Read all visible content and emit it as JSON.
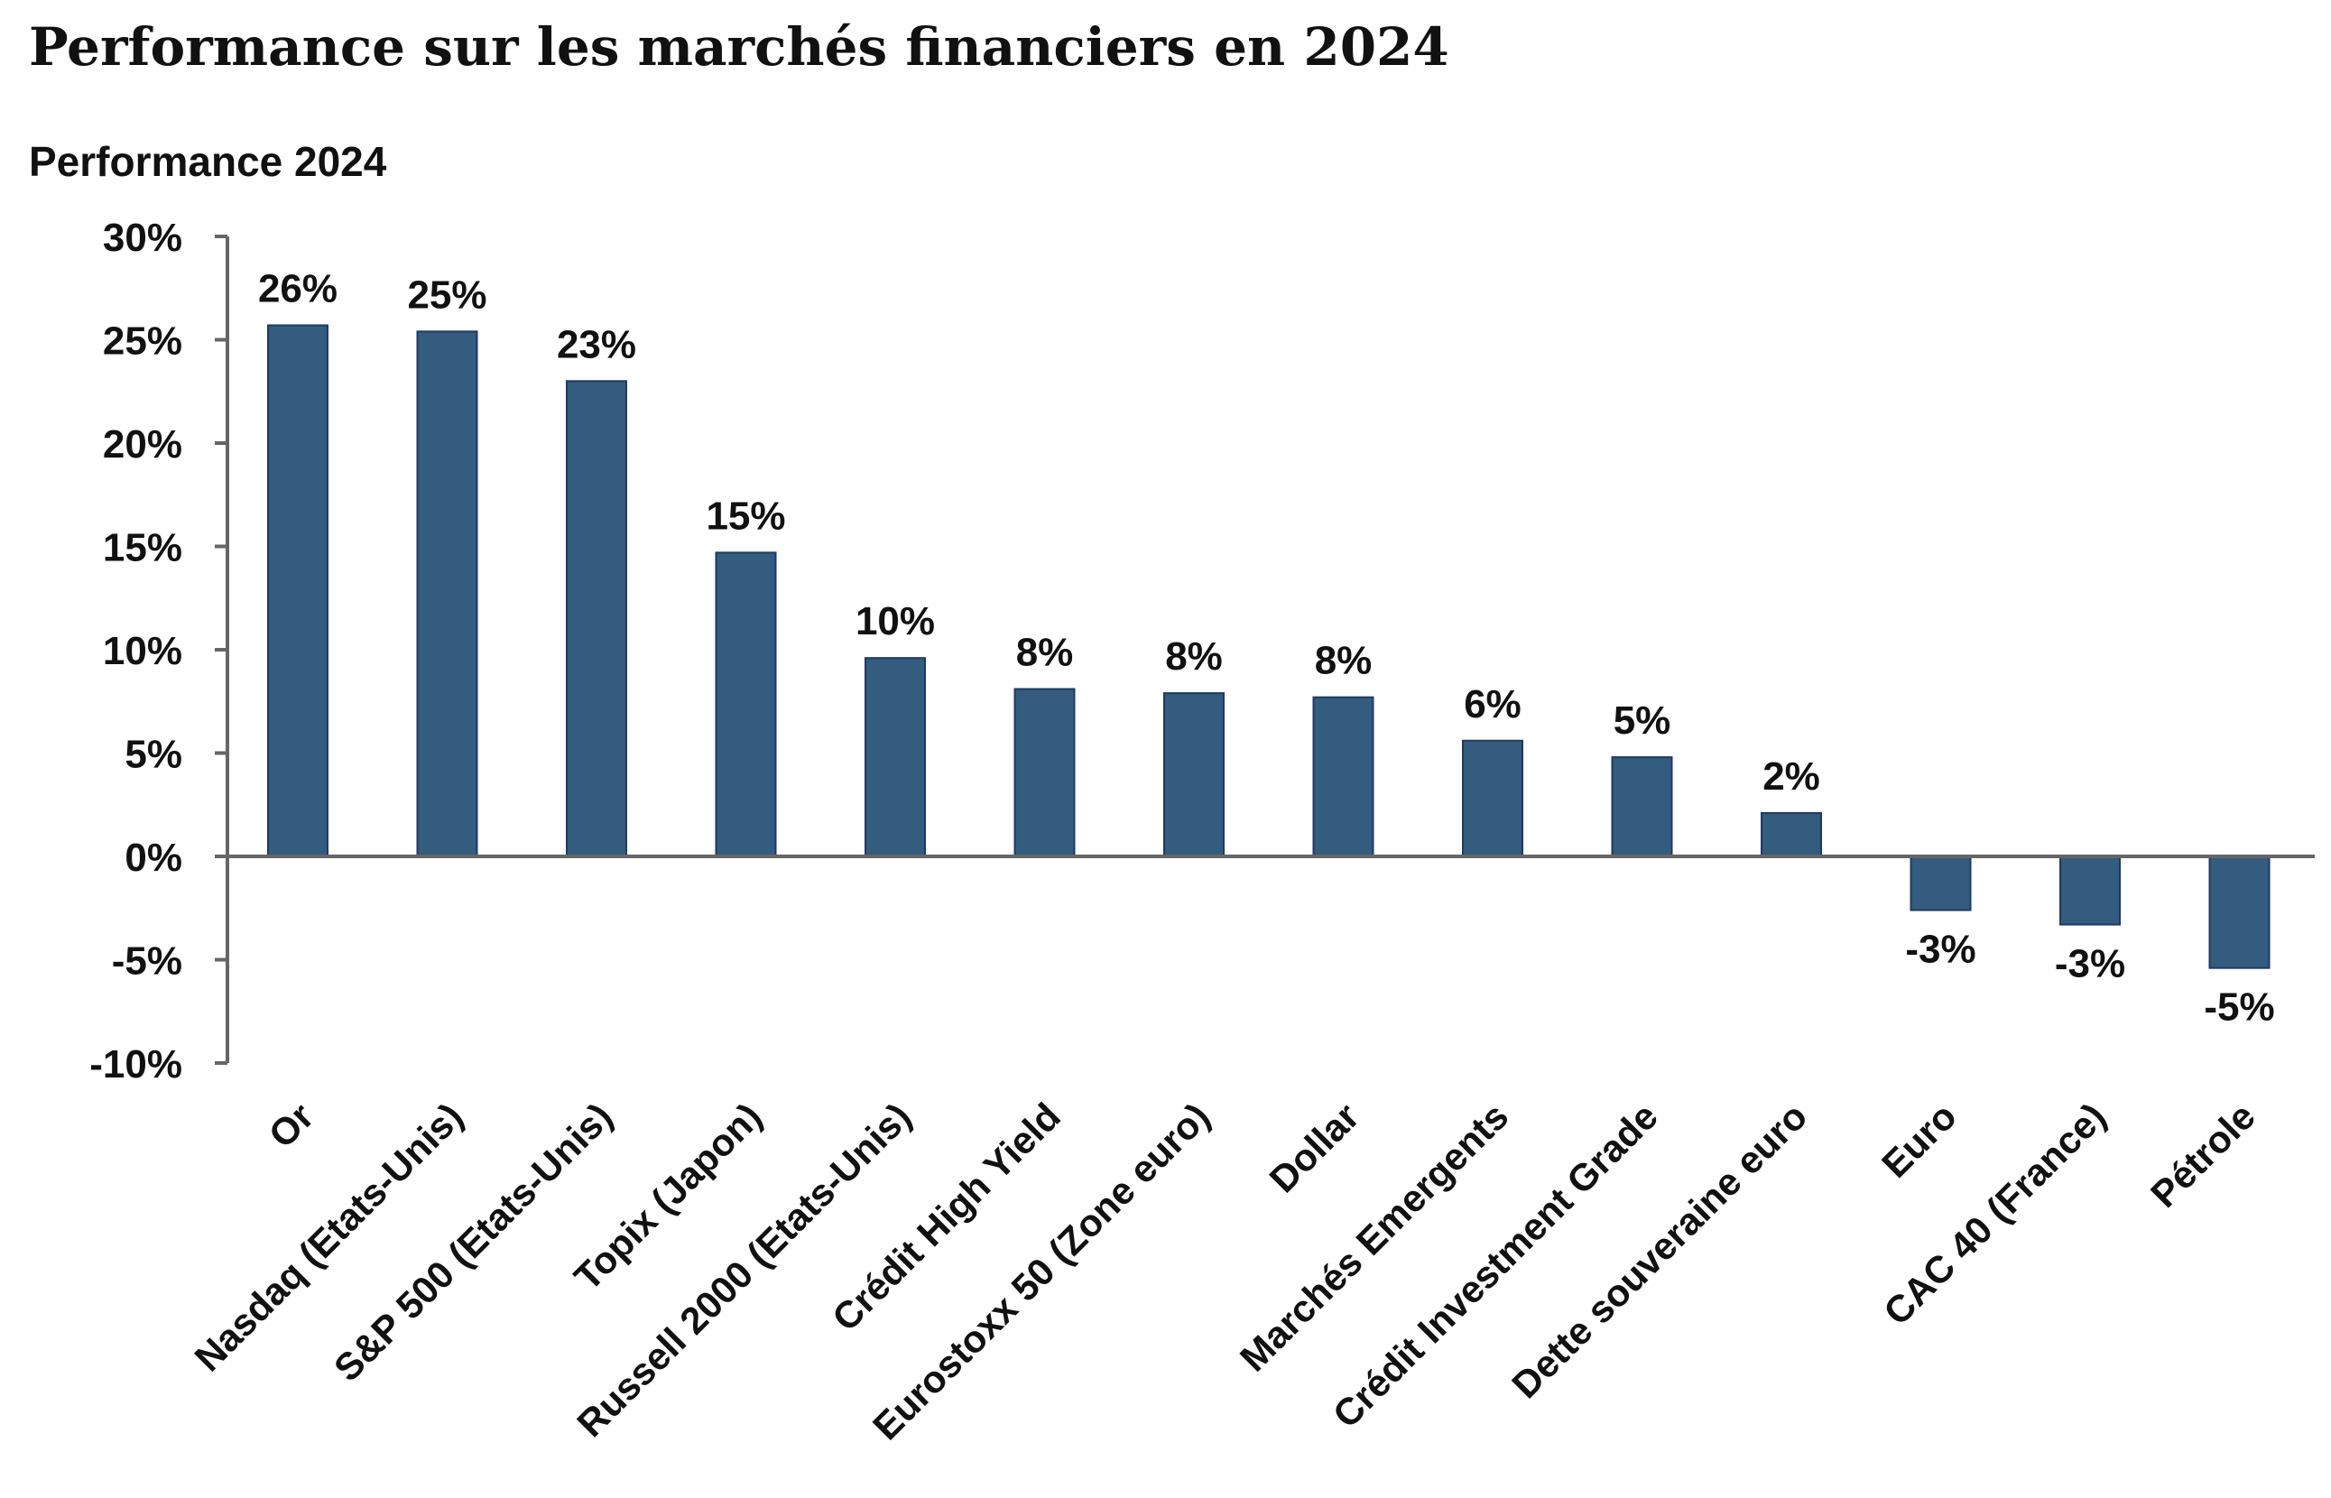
{
  "title": "Performance sur les marchés financiers en 2024",
  "subtitle": "Performance 2024",
  "chart_data": {
    "type": "bar",
    "ylabel": "",
    "xlabel": "",
    "ylim": [
      -10,
      30
    ],
    "yticks": [
      30,
      25,
      20,
      15,
      10,
      5,
      0,
      -5,
      -10
    ],
    "ytick_labels": [
      "30%",
      "25%",
      "20%",
      "15%",
      "10%",
      "5%",
      "0%",
      "-5%",
      "-10%"
    ],
    "grid": false,
    "legend": "none",
    "bar_color": "#335c7e",
    "categories": [
      "Or",
      "Nasdaq (Etats-Unis)",
      "S&P 500 (Etats-Unis)",
      "Topix (Japon)",
      "Russell 2000 (Etats-Unis)",
      "Crédit High Yield",
      "Eurostoxx 50 (Zone euro)",
      "Dollar",
      "Marchés Emergents",
      "Crédit Investment Grade",
      "Dette souveraine euro",
      "Euro",
      "CAC 40 (France)",
      "Pétrole"
    ],
    "values": [
      25.7,
      25.4,
      23.0,
      14.7,
      9.6,
      8.1,
      7.9,
      7.7,
      5.6,
      4.8,
      2.1,
      -2.6,
      -3.3,
      -5.4
    ],
    "data_labels": [
      "26%",
      "25%",
      "23%",
      "15%",
      "10%",
      "8%",
      "8%",
      "8%",
      "6%",
      "5%",
      "2%",
      "-3%",
      "-3%",
      "-5%"
    ]
  }
}
